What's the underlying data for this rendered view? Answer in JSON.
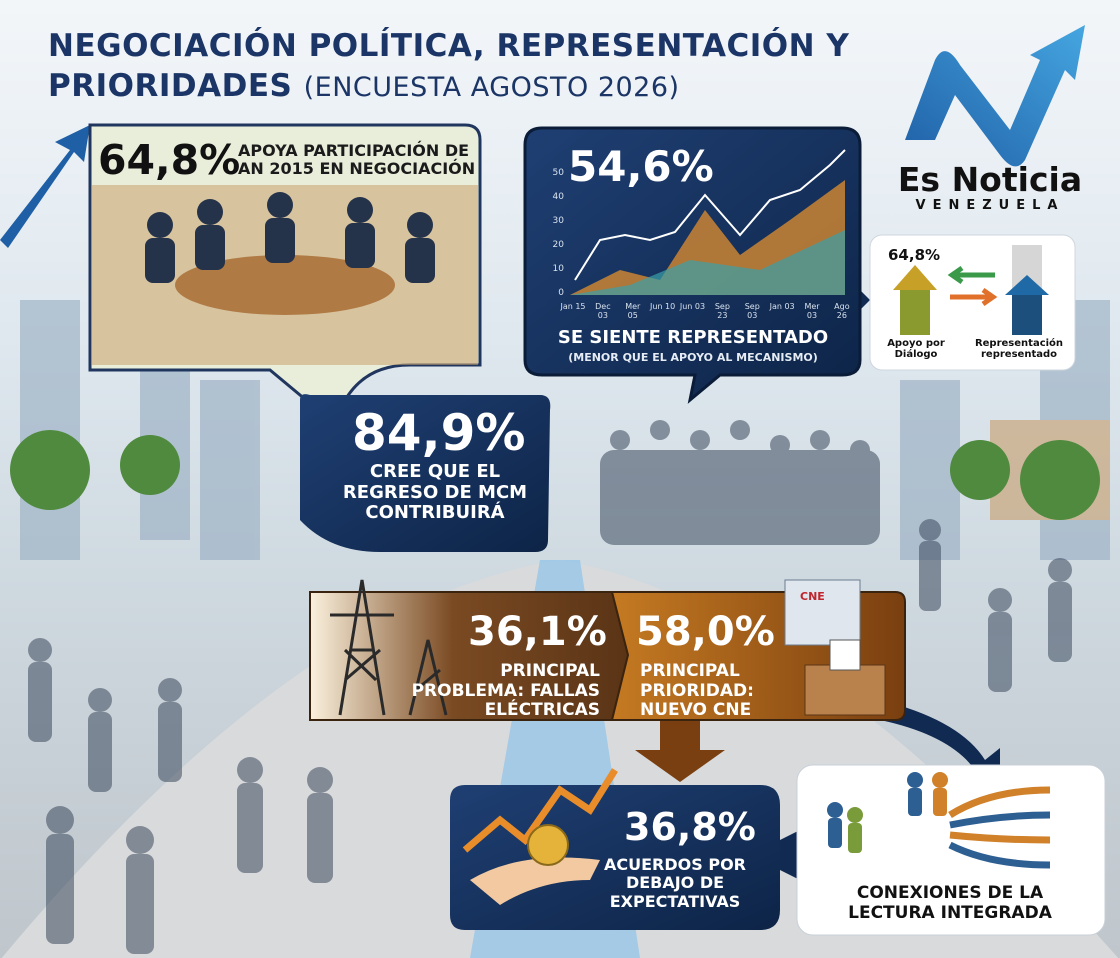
{
  "header": {
    "title": "NEGOCIACIÓN POLÍTICA, REPRESENTACIÓN Y PRIORIDADES",
    "subtitle": "(ENCUESTA AGOSTO 2026)"
  },
  "logo": {
    "name": "Es Noticia",
    "country": "VENEZUELA"
  },
  "panels": [
    {
      "stat": "64,8%",
      "text": "APOYA PARTICIPACIÓN DE AN 2015 EN NEGOCIACIÓN"
    },
    {
      "stat": "54,6%",
      "text": "SE SIENTE REPRESENTADO",
      "note": "(MENOR QUE EL APOYO AL MECANISMO)",
      "chart_yticks": [
        0,
        10,
        20,
        30,
        40,
        50
      ],
      "chart_xlabels": [
        "Jan 15",
        "Dec 03",
        "Mer 05",
        "Jun 10",
        "Jun 03",
        "Sep 23",
        "Sep 03",
        "Jan 03",
        "Mer 03",
        "Ago 26"
      ]
    },
    {
      "stat": "84,9%",
      "text": "CREE QUE EL REGRESO DE MCM CONTRIBUIRÁ"
    },
    {
      "stat": "36,1%",
      "text": "PRINCIPAL PROBLEMA: FALLAS ELÉCTRICAS"
    },
    {
      "stat": "58,0%",
      "text": "PRINCIPAL PRIORIDAD: NUEVO CNE",
      "sign": "CNE"
    },
    {
      "stat": "36,8%",
      "text": "ACUERDOS POR DEBAJO DE EXPECTATIVAS"
    },
    {
      "text": "CONEXIONES DE LA LECTURA INTEGRADA"
    }
  ],
  "comparison": {
    "stat": "64,8%",
    "left_label": "Apoyo por Diálogo",
    "right_label": "Representación representado"
  }
}
